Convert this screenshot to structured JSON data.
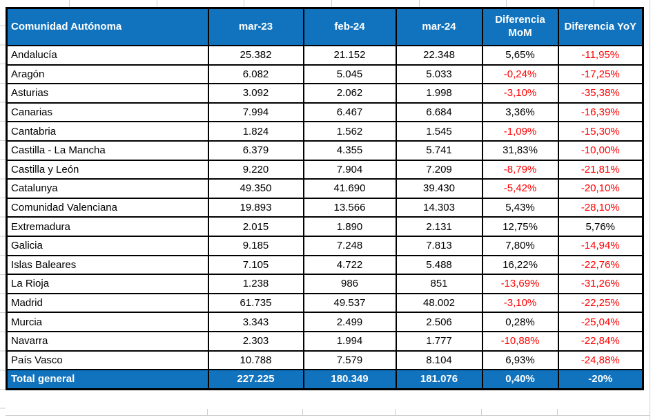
{
  "table": {
    "columns": [
      "Comunidad Autónoma",
      "mar-23",
      "feb-24",
      "mar-24",
      "Diferencia MoM",
      "Diferencia YoY"
    ],
    "rows": [
      [
        "Andalucía",
        "25.382",
        "21.152",
        "22.348",
        "5,65%",
        "-11,95%"
      ],
      [
        "Aragón",
        "6.082",
        "5.045",
        "5.033",
        "-0,24%",
        "-17,25%"
      ],
      [
        "Asturias",
        "3.092",
        "2.062",
        "1.998",
        "-3,10%",
        "-35,38%"
      ],
      [
        "Canarias",
        "7.994",
        "6.467",
        "6.684",
        "3,36%",
        "-16,39%"
      ],
      [
        "Cantabria",
        "1.824",
        "1.562",
        "1.545",
        "-1,09%",
        "-15,30%"
      ],
      [
        "Castilla - La Mancha",
        "6.379",
        "4.355",
        "5.741",
        "31,83%",
        "-10,00%"
      ],
      [
        "Castilla y León",
        "9.220",
        "7.904",
        "7.209",
        "-8,79%",
        "-21,81%"
      ],
      [
        "Catalunya",
        "49.350",
        "41.690",
        "39.430",
        "-5,42%",
        "-20,10%"
      ],
      [
        "Comunidad Valenciana",
        "19.893",
        "13.566",
        "14.303",
        "5,43%",
        "-28,10%"
      ],
      [
        "Extremadura",
        "2.015",
        "1.890",
        "2.131",
        "12,75%",
        "5,76%"
      ],
      [
        "Galicia",
        "9.185",
        "7.248",
        "7.813",
        "7,80%",
        "-14,94%"
      ],
      [
        "Islas Baleares",
        "7.105",
        "4.722",
        "5.488",
        "16,22%",
        "-22,76%"
      ],
      [
        "La Rioja",
        "1.238",
        "986",
        "851",
        "-13,69%",
        "-31,26%"
      ],
      [
        "Madrid",
        "61.735",
        "49.537",
        "48.002",
        "-3,10%",
        "-22,25%"
      ],
      [
        "Murcia",
        "3.343",
        "2.499",
        "2.506",
        "0,28%",
        "-25,04%"
      ],
      [
        "Navarra",
        "2.303",
        "1.994",
        "1.777",
        "-10,88%",
        "-22,84%"
      ],
      [
        "País Vasco",
        "10.788",
        "7.579",
        "8.104",
        "6,93%",
        "-24,88%"
      ]
    ],
    "total": [
      "Total general",
      "227.225",
      "180.349",
      "181.076",
      "0,40%",
      "-20%"
    ]
  },
  "colors": {
    "header_bg": "#1173BE",
    "negative_text": "#FF0000",
    "border": "#000000"
  }
}
